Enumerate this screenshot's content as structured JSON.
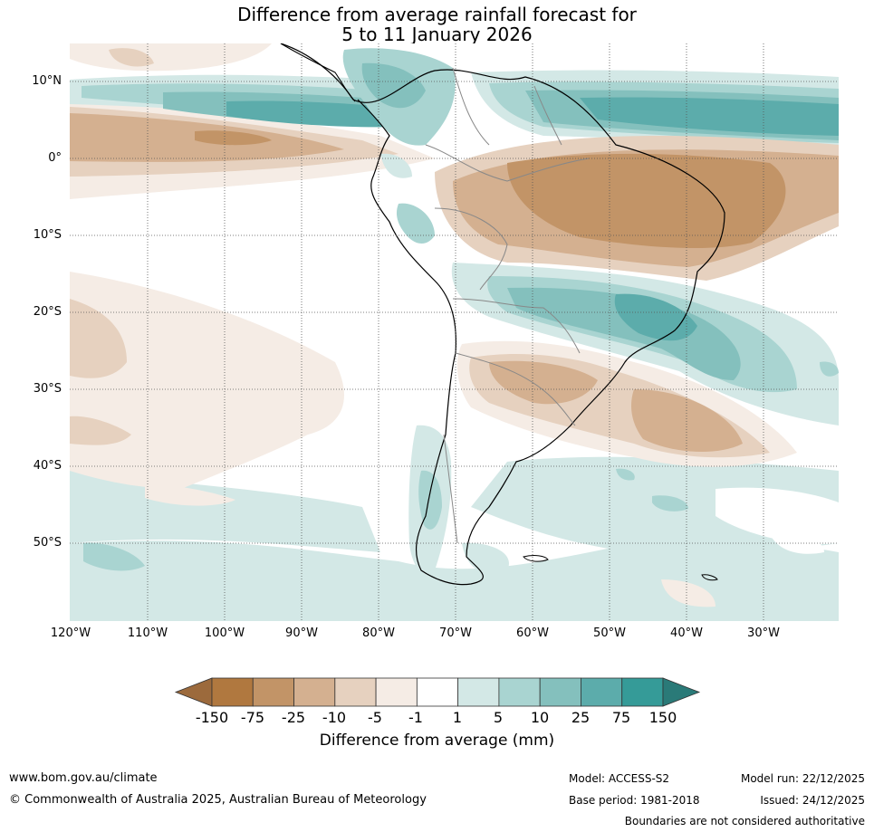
{
  "title": {
    "line1": "Difference from average rainfall forecast for",
    "line2": "5 to 11 January 2026"
  },
  "axes": {
    "lat_labels": [
      "10°N",
      "0°",
      "10°S",
      "20°S",
      "30°S",
      "40°S",
      "50°S"
    ],
    "lon_labels": [
      "120°W",
      "110°W",
      "100°W",
      "90°W",
      "80°W",
      "70°W",
      "60°W",
      "50°W",
      "40°W",
      "30°W"
    ]
  },
  "legend": {
    "title": "Difference from average (mm)",
    "tick_labels": [
      "-150",
      "-75",
      "-25",
      "-10",
      "-5",
      "-1",
      "1",
      "5",
      "10",
      "25",
      "75",
      "150"
    ],
    "colors": [
      "#9c6a3c",
      "#b0783f",
      "#c29467",
      "#d4b090",
      "#e6d1bf",
      "#f5ece5",
      "#ffffff",
      "#d3e8e6",
      "#a9d4d1",
      "#84c0bd",
      "#5cacab",
      "#359b98",
      "#2a7a78"
    ]
  },
  "footer": {
    "website": "www.bom.gov.au/climate",
    "copyright": "© Commonwealth of Australia 2025, Australian Bureau of Meteorology",
    "model": "Model: ACCESS-S2",
    "base_period": "Base period: 1981-2018",
    "model_run": "Model run: 22/12/2025",
    "issued": "Issued: 24/12/2025",
    "disclaimer": "Boundaries are not considered authoritative"
  }
}
